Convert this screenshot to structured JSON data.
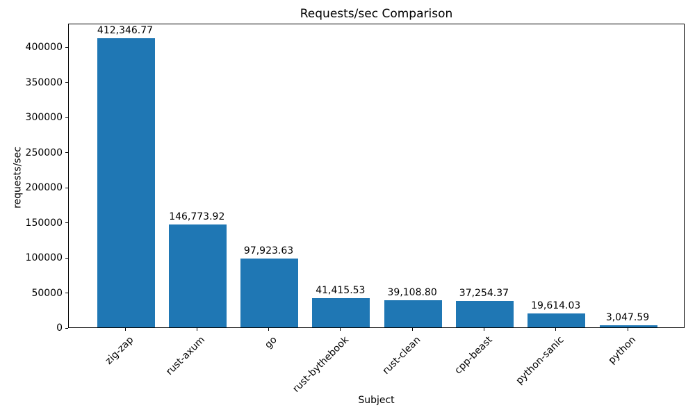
{
  "chart_data": {
    "type": "bar",
    "title": "Requests/sec Comparison",
    "xlabel": "Subject",
    "ylabel": "requests/sec",
    "categories": [
      "zig-zap",
      "rust-axum",
      "go",
      "rust-bythebook",
      "rust-clean",
      "cpp-beast",
      "python-sanic",
      "python"
    ],
    "values": [
      412346.77,
      146773.92,
      97923.63,
      41415.53,
      39108.8,
      37254.37,
      19614.03,
      3047.59
    ],
    "value_labels": [
      "412,346.77",
      "146,773.92",
      "97,923.63",
      "41,415.53",
      "39,108.80",
      "37,254.37",
      "19,614.03",
      "3,047.59"
    ],
    "y_ticks": [
      0,
      50000,
      100000,
      150000,
      200000,
      250000,
      300000,
      350000,
      400000
    ],
    "y_tick_labels": [
      "0",
      "50000",
      "100000",
      "150000",
      "200000",
      "250000",
      "300000",
      "350000",
      "400000"
    ],
    "ylim": [
      0,
      433700
    ],
    "bar_color": "#1f77b4",
    "grid": false,
    "legend_position": "none",
    "x_tick_rotation_deg": 45
  }
}
